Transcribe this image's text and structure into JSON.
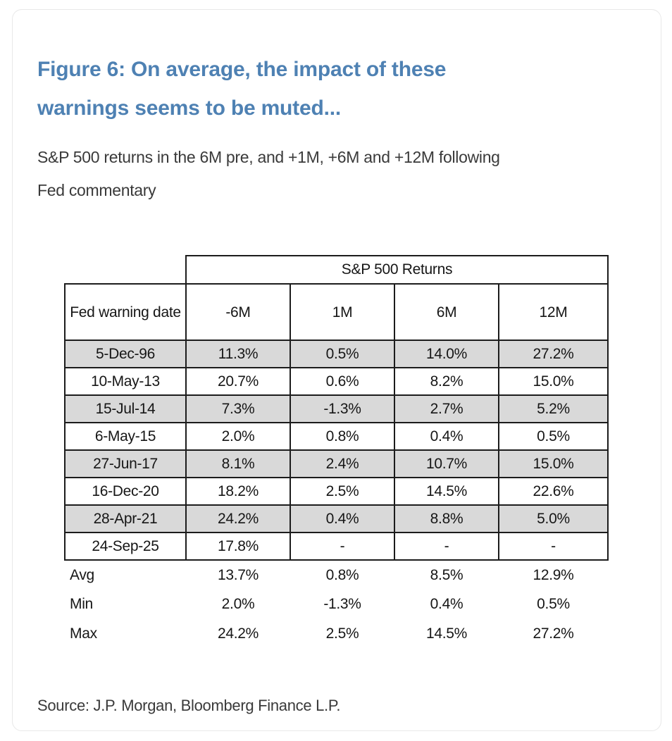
{
  "figure": {
    "title_lines": [
      "Figure 6: On average, the impact of these",
      "warnings seems to be muted..."
    ],
    "subtitle_lines": [
      "S&P 500 returns in the 6M pre, and +1M, +6M and +12M following",
      "Fed commentary"
    ],
    "source": "Source: J.P. Morgan, Bloomberg Finance L.P."
  },
  "table": {
    "span_header": "S&P 500 Returns",
    "columns": [
      "Fed warning date",
      "-6M",
      "1M",
      "6M",
      "12M"
    ],
    "rows": [
      {
        "date": "5-Dec-96",
        "values": [
          "11.3%",
          "0.5%",
          "14.0%",
          "27.2%"
        ]
      },
      {
        "date": "10-May-13",
        "values": [
          "20.7%",
          "0.6%",
          "8.2%",
          "15.0%"
        ]
      },
      {
        "date": "15-Jul-14",
        "values": [
          "7.3%",
          "-1.3%",
          "2.7%",
          "5.2%"
        ]
      },
      {
        "date": "6-May-15",
        "values": [
          "2.0%",
          "0.8%",
          "0.4%",
          "0.5%"
        ]
      },
      {
        "date": "27-Jun-17",
        "values": [
          "8.1%",
          "2.4%",
          "10.7%",
          "15.0%"
        ]
      },
      {
        "date": "16-Dec-20",
        "values": [
          "18.2%",
          "2.5%",
          "14.5%",
          "22.6%"
        ]
      },
      {
        "date": "28-Apr-21",
        "values": [
          "24.2%",
          "0.4%",
          "8.8%",
          "5.0%"
        ]
      },
      {
        "date": "24-Sep-25",
        "values": [
          "17.8%",
          "-",
          "-",
          "-"
        ]
      }
    ],
    "summary": [
      {
        "label": "Avg",
        "values": [
          "13.7%",
          "0.8%",
          "8.5%",
          "12.9%"
        ]
      },
      {
        "label": "Min",
        "values": [
          "2.0%",
          "-1.3%",
          "0.4%",
          "0.5%"
        ]
      },
      {
        "label": "Max",
        "values": [
          "24.2%",
          "2.5%",
          "14.5%",
          "27.2%"
        ]
      }
    ]
  },
  "colors": {
    "title_blue": "#4e81b3",
    "body_text": "#3a3a3a",
    "table_border": "#1c1c1c",
    "shaded_row": "#d9d9d9",
    "card_border": "#e8e8e8"
  },
  "chart_data": {
    "type": "table",
    "title": "Figure 6: On average, the impact of these warnings seems to be muted...",
    "subtitle": "S&P 500 returns in the 6M pre, and +1M, +6M and +12M following Fed commentary",
    "group_header": "S&P 500 Returns",
    "columns": [
      "Fed warning date",
      "-6M",
      "1M",
      "6M",
      "12M"
    ],
    "rows": [
      [
        "5-Dec-96",
        11.3,
        0.5,
        14.0,
        27.2
      ],
      [
        "10-May-13",
        20.7,
        0.6,
        8.2,
        15.0
      ],
      [
        "15-Jul-14",
        7.3,
        -1.3,
        2.7,
        5.2
      ],
      [
        "6-May-15",
        2.0,
        0.8,
        0.4,
        0.5
      ],
      [
        "27-Jun-17",
        8.1,
        2.4,
        10.7,
        15.0
      ],
      [
        "16-Dec-20",
        18.2,
        2.5,
        14.5,
        22.6
      ],
      [
        "28-Apr-21",
        24.2,
        0.4,
        8.8,
        5.0
      ],
      [
        "24-Sep-25",
        17.8,
        null,
        null,
        null
      ]
    ],
    "summary_rows": [
      [
        "Avg",
        13.7,
        0.8,
        8.5,
        12.9
      ],
      [
        "Min",
        2.0,
        -1.3,
        0.4,
        0.5
      ],
      [
        "Max",
        24.2,
        2.5,
        14.5,
        27.2
      ]
    ],
    "units": "percent",
    "source": "Source: J.P. Morgan, Bloomberg Finance L.P."
  }
}
